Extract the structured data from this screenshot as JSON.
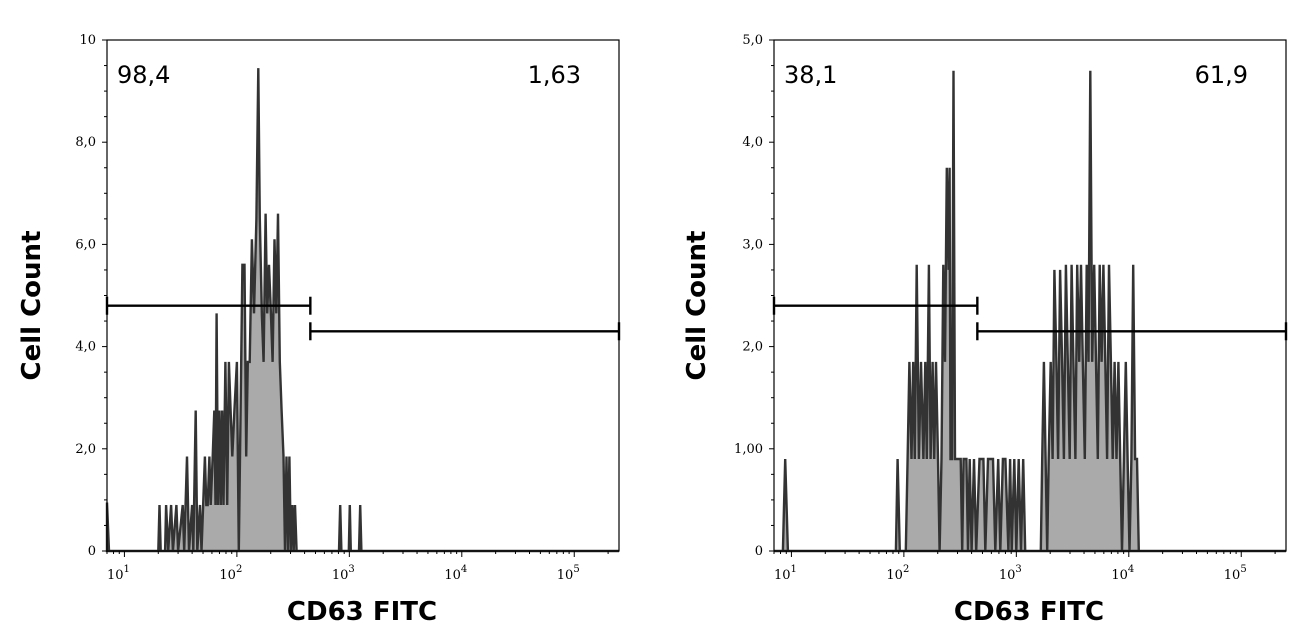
{
  "chart_data": [
    {
      "type": "histogram",
      "xlabel": "CD63 FITC",
      "ylabel": "Cell Count",
      "x_scale": "log",
      "xlim": [
        7,
        250000
      ],
      "ylim": [
        0,
        10
      ],
      "x_tick_labels": [
        {
          "value": 10,
          "base": "10",
          "exp": "1"
        },
        {
          "value": 100,
          "base": "10",
          "exp": "2"
        },
        {
          "value": 1000,
          "base": "10",
          "exp": "3"
        },
        {
          "value": 10000,
          "base": "10",
          "exp": "4"
        },
        {
          "value": 100000,
          "base": "10",
          "exp": "5"
        }
      ],
      "y_ticks": [
        {
          "value": 0,
          "label": "0"
        },
        {
          "value": 2,
          "label": "2,0"
        },
        {
          "value": 4,
          "label": "4,0"
        },
        {
          "value": 6,
          "label": "6,0"
        },
        {
          "value": 8,
          "label": "8,0"
        },
        {
          "value": 10,
          "label": "10"
        }
      ],
      "gates": [
        {
          "label": "98,4",
          "x_range": [
            7,
            450
          ],
          "level": 4.8,
          "label_position": "top-left"
        },
        {
          "label": "1,63",
          "x_range": [
            450,
            250000
          ],
          "level": 4.3,
          "label_position": "top-right"
        }
      ],
      "points": [
        [
          7,
          0.95
        ],
        [
          7.3,
          0
        ],
        [
          20,
          0
        ],
        [
          20.5,
          0.9
        ],
        [
          21,
          0
        ],
        [
          23,
          0
        ],
        [
          23.5,
          0.9
        ],
        [
          24.5,
          0
        ],
        [
          26,
          0.9
        ],
        [
          27,
          0
        ],
        [
          29,
          0.9
        ],
        [
          30,
          0
        ],
        [
          33,
          0.9
        ],
        [
          34,
          0
        ],
        [
          36,
          1.85
        ],
        [
          37.5,
          0
        ],
        [
          40,
          0.9
        ],
        [
          41,
          0
        ],
        [
          43,
          2.75
        ],
        [
          44.5,
          0
        ],
        [
          47,
          0.9
        ],
        [
          48.5,
          0
        ],
        [
          52,
          1.85
        ],
        [
          53.5,
          0.9
        ],
        [
          55,
          0.9
        ],
        [
          57,
          1.85
        ],
        [
          58.5,
          0.9
        ],
        [
          61,
          1.85
        ],
        [
          63,
          2.75
        ],
        [
          64.5,
          0.9
        ],
        [
          66,
          4.65
        ],
        [
          68,
          0.9
        ],
        [
          70,
          2.75
        ],
        [
          72,
          0.9
        ],
        [
          74,
          2.75
        ],
        [
          76,
          0.9
        ],
        [
          79,
          3.7
        ],
        [
          82,
          0.9
        ],
        [
          85,
          3.7
        ],
        [
          88,
          2.75
        ],
        [
          91,
          1.85
        ],
        [
          95,
          2.75
        ],
        [
          100,
          3.7
        ],
        [
          104,
          0
        ],
        [
          108,
          2.75
        ],
        [
          112,
          5.6
        ],
        [
          117,
          5.6
        ],
        [
          121,
          1.85
        ],
        [
          125,
          3.7
        ],
        [
          130,
          3.7
        ],
        [
          136,
          6.1
        ],
        [
          142,
          4.65
        ],
        [
          149,
          6.5
        ],
        [
          155,
          9.45
        ],
        [
          160,
          6.5
        ],
        [
          167,
          4.6
        ],
        [
          173,
          3.7
        ],
        [
          180,
          6.6
        ],
        [
          186,
          4.65
        ],
        [
          193,
          5.6
        ],
        [
          201,
          4.6
        ],
        [
          208,
          3.7
        ],
        [
          216,
          6.1
        ],
        [
          224,
          4.65
        ],
        [
          232,
          6.6
        ],
        [
          241,
          3.7
        ],
        [
          250,
          2.75
        ],
        [
          260,
          1.85
        ],
        [
          268,
          0
        ],
        [
          276,
          1.85
        ],
        [
          285,
          0
        ],
        [
          293,
          1.85
        ],
        [
          302,
          0
        ],
        [
          312,
          0.9
        ],
        [
          320,
          0
        ],
        [
          329,
          0.9
        ],
        [
          340,
          0
        ],
        [
          810,
          0
        ],
        [
          830,
          0.9
        ],
        [
          850,
          0
        ],
        [
          990,
          0
        ],
        [
          1010,
          0.9
        ],
        [
          1030,
          0
        ],
        [
          1220,
          0
        ],
        [
          1250,
          0.9
        ],
        [
          1280,
          0
        ],
        [
          250000,
          0
        ]
      ]
    },
    {
      "type": "histogram",
      "xlabel": "CD63 FITC",
      "ylabel": "Cell Count",
      "x_scale": "log",
      "xlim": [
        7,
        250000
      ],
      "ylim": [
        0,
        5
      ],
      "x_tick_labels": [
        {
          "value": 10,
          "base": "10",
          "exp": "1"
        },
        {
          "value": 100,
          "base": "10",
          "exp": "2"
        },
        {
          "value": 1000,
          "base": "10",
          "exp": "3"
        },
        {
          "value": 10000,
          "base": "10",
          "exp": "4"
        },
        {
          "value": 100000,
          "base": "10",
          "exp": "5"
        }
      ],
      "y_ticks": [
        {
          "value": 0,
          "label": "0"
        },
        {
          "value": 1,
          "label": "1,00"
        },
        {
          "value": 2,
          "label": "2,0"
        },
        {
          "value": 3,
          "label": "3,0"
        },
        {
          "value": 4,
          "label": "4,0"
        },
        {
          "value": 5,
          "label": "5,0"
        }
      ],
      "gates": [
        {
          "label": "38,1",
          "x_range": [
            7,
            450
          ],
          "level": 2.4,
          "label_position": "top-left"
        },
        {
          "label": "61,9",
          "x_range": [
            450,
            250000
          ],
          "level": 2.15,
          "label_position": "top-right"
        }
      ],
      "points": [
        [
          7,
          0
        ],
        [
          8.4,
          0
        ],
        [
          8.8,
          0.9
        ],
        [
          9.3,
          0
        ],
        [
          85,
          0
        ],
        [
          88,
          0.9
        ],
        [
          92,
          0
        ],
        [
          104,
          0
        ],
        [
          108,
          0.9
        ],
        [
          112,
          1.85
        ],
        [
          117,
          0.9
        ],
        [
          121,
          1.85
        ],
        [
          125,
          0.9
        ],
        [
          130,
          2.8
        ],
        [
          136,
          0.9
        ],
        [
          142,
          1.85
        ],
        [
          149,
          0.9
        ],
        [
          155,
          1.85
        ],
        [
          160,
          0.9
        ],
        [
          167,
          2.8
        ],
        [
          173,
          0.9
        ],
        [
          180,
          1.85
        ],
        [
          186,
          0.9
        ],
        [
          193,
          1.85
        ],
        [
          201,
          0.9
        ],
        [
          208,
          0
        ],
        [
          216,
          0.9
        ],
        [
          224,
          2.8
        ],
        [
          232,
          1.85
        ],
        [
          241,
          3.75
        ],
        [
          250,
          2.75
        ],
        [
          255,
          3.75
        ],
        [
          260,
          0.9
        ],
        [
          268,
          0.9
        ],
        [
          276,
          4.7
        ],
        [
          285,
          0.9
        ],
        [
          293,
          0.9
        ],
        [
          320,
          0.9
        ],
        [
          330,
          0
        ],
        [
          340,
          0.9
        ],
        [
          360,
          0.9
        ],
        [
          372,
          0
        ],
        [
          385,
          0.9
        ],
        [
          400,
          0
        ],
        [
          420,
          0.9
        ],
        [
          440,
          0
        ],
        [
          470,
          0.9
        ],
        [
          510,
          0.9
        ],
        [
          530,
          0
        ],
        [
          560,
          0.9
        ],
        [
          620,
          0.9
        ],
        [
          650,
          0
        ],
        [
          690,
          0.9
        ],
        [
          720,
          0
        ],
        [
          760,
          0.9
        ],
        [
          800,
          0.9
        ],
        [
          850,
          0
        ],
        [
          880,
          0.9
        ],
        [
          910,
          0
        ],
        [
          960,
          0.9
        ],
        [
          1000,
          0
        ],
        [
          1050,
          0.9
        ],
        [
          1100,
          0
        ],
        [
          1150,
          0.9
        ],
        [
          1200,
          0
        ],
        [
          1650,
          0
        ],
        [
          1700,
          0.9
        ],
        [
          1760,
          1.85
        ],
        [
          1820,
          0.9
        ],
        [
          1880,
          0
        ],
        [
          1940,
          0.9
        ],
        [
          2020,
          1.85
        ],
        [
          2100,
          0.9
        ],
        [
          2180,
          2.75
        ],
        [
          2270,
          1.85
        ],
        [
          2350,
          0.9
        ],
        [
          2450,
          2.75
        ],
        [
          2550,
          1.85
        ],
        [
          2650,
          0.9
        ],
        [
          2760,
          2.8
        ],
        [
          2870,
          1.85
        ],
        [
          2980,
          0.9
        ],
        [
          3100,
          2.8
        ],
        [
          3220,
          1.85
        ],
        [
          3350,
          0.9
        ],
        [
          3480,
          2.8
        ],
        [
          3620,
          1.85
        ],
        [
          3760,
          2.8
        ],
        [
          3900,
          1.85
        ],
        [
          4060,
          0.9
        ],
        [
          4220,
          2.8
        ],
        [
          4380,
          1.85
        ],
        [
          4550,
          4.7
        ],
        [
          4730,
          1.85
        ],
        [
          4920,
          2.8
        ],
        [
          5110,
          1.85
        ],
        [
          5300,
          0.9
        ],
        [
          5510,
          2.8
        ],
        [
          5730,
          1.85
        ],
        [
          5950,
          2.8
        ],
        [
          6180,
          1.85
        ],
        [
          6420,
          0.9
        ],
        [
          6670,
          2.8
        ],
        [
          6930,
          1.85
        ],
        [
          7200,
          0.9
        ],
        [
          7480,
          1.85
        ],
        [
          7770,
          0.9
        ],
        [
          8080,
          1.85
        ],
        [
          8390,
          0.9
        ],
        [
          8710,
          0
        ],
        [
          9050,
          0.9
        ],
        [
          9400,
          1.85
        ],
        [
          9760,
          0.9
        ],
        [
          10150,
          0
        ],
        [
          10540,
          0.9
        ],
        [
          10950,
          2.8
        ],
        [
          11380,
          0.9
        ],
        [
          11820,
          0.9
        ],
        [
          12280,
          0
        ],
        [
          250000,
          0
        ]
      ]
    }
  ]
}
